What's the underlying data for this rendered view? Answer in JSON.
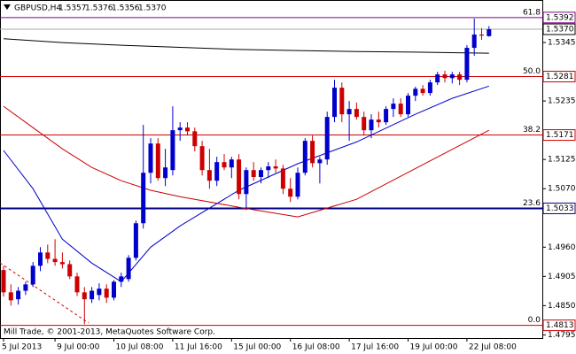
{
  "chart_data": {
    "type": "candlestick",
    "header": {
      "symbol": "GBPUSD,H4",
      "values": [
        1.5357,
        1.5376,
        1.5356,
        1.537
      ],
      "value_labels": [
        "1.5357",
        "1.5376",
        "1.5356",
        "1.5370"
      ]
    },
    "footer": "Mill Trade, © 2001-2013, MetaQuotes Software Corp.",
    "categories": [
      "5 Jul 2013",
      null,
      null,
      null,
      null,
      null,
      null,
      "9 Jul 00:00",
      null,
      null,
      null,
      null,
      null,
      null,
      null,
      "10 Jul 08:00",
      null,
      null,
      null,
      null,
      null,
      null,
      null,
      "11 Jul 16:00",
      null,
      null,
      null,
      null,
      null,
      null,
      null,
      "15 Jul 00:00",
      null,
      null,
      null,
      null,
      null,
      null,
      null,
      "16 Jul 08:00",
      null,
      null,
      null,
      null,
      null,
      null,
      null,
      "17 Jul 16:00",
      null,
      null,
      null,
      null,
      null,
      null,
      null,
      "19 Jul 00:00",
      null,
      null,
      null,
      null,
      null,
      null,
      null,
      "22 Jul 08:00",
      null,
      null,
      null
    ],
    "open": [
      1.4917,
      1.4875,
      1.4862,
      1.4878,
      1.489,
      1.4925,
      1.495,
      1.4938,
      1.4932,
      1.4928,
      1.4905,
      1.4875,
      1.4862,
      1.487,
      1.4882,
      1.4865,
      1.4895,
      1.49,
      1.494,
      1.5005,
      1.51,
      1.5155,
      1.509,
      1.5105,
      1.518,
      1.5185,
      1.5178,
      1.515,
      1.5105,
      1.5085,
      1.512,
      1.511,
      1.5125,
      1.506,
      1.5105,
      1.5092,
      1.5105,
      1.5112,
      1.5108,
      1.507,
      1.5055,
      1.51,
      1.516,
      1.5118,
      1.5125,
      1.5205,
      1.526,
      1.521,
      1.522,
      1.5205,
      1.518,
      1.52,
      1.5195,
      1.522,
      1.523,
      1.521,
      1.5245,
      1.5258,
      1.525,
      1.527,
      1.5285,
      1.5278,
      1.5285,
      1.5275,
      1.5335,
      1.536,
      1.5357
    ],
    "high": [
      1.4925,
      1.489,
      1.4885,
      1.4895,
      1.4932,
      1.496,
      1.4965,
      1.4975,
      1.495,
      1.4935,
      1.4912,
      1.4885,
      1.4885,
      1.4892,
      1.489,
      1.4898,
      1.4912,
      1.4945,
      1.501,
      1.519,
      1.5165,
      1.5165,
      1.5145,
      1.5225,
      1.5195,
      1.5195,
      1.5185,
      1.516,
      1.5145,
      1.513,
      1.5135,
      1.513,
      1.5135,
      1.511,
      1.512,
      1.511,
      1.512,
      1.5125,
      1.5115,
      1.509,
      1.511,
      1.5165,
      1.517,
      1.513,
      1.5215,
      1.5275,
      1.527,
      1.5235,
      1.5232,
      1.5215,
      1.521,
      1.5215,
      1.5225,
      1.524,
      1.524,
      1.525,
      1.5262,
      1.5265,
      1.5275,
      1.529,
      1.5292,
      1.529,
      1.529,
      1.534,
      1.539,
      1.5372,
      1.5376
    ],
    "low": [
      1.4867,
      1.485,
      1.4852,
      1.487,
      1.4885,
      1.4915,
      1.493,
      1.4925,
      1.492,
      1.49,
      1.4868,
      1.4815,
      1.4855,
      1.486,
      1.4855,
      1.486,
      1.4885,
      1.4895,
      1.4935,
      1.4995,
      1.508,
      1.5085,
      1.5075,
      1.5095,
      1.516,
      1.517,
      1.514,
      1.5095,
      1.507,
      1.5075,
      1.5105,
      1.509,
      1.505,
      1.503,
      1.5085,
      1.508,
      1.509,
      1.51,
      1.506,
      1.5045,
      1.505,
      1.5095,
      1.511,
      1.508,
      1.5115,
      1.5195,
      1.5195,
      1.516,
      1.52,
      1.517,
      1.5165,
      1.5185,
      1.519,
      1.5205,
      1.5205,
      1.5205,
      1.5235,
      1.5245,
      1.5245,
      1.5265,
      1.527,
      1.5268,
      1.5265,
      1.527,
      1.532,
      1.535,
      1.5356
    ],
    "close": [
      1.4875,
      1.486,
      1.4878,
      1.489,
      1.4925,
      1.495,
      1.4938,
      1.4932,
      1.4928,
      1.4905,
      1.4875,
      1.4862,
      1.4878,
      1.4882,
      1.4865,
      1.4895,
      1.4905,
      1.494,
      1.5005,
      1.51,
      1.5155,
      1.509,
      1.511,
      1.518,
      1.5185,
      1.5178,
      1.515,
      1.5105,
      1.5085,
      1.512,
      1.511,
      1.5125,
      1.506,
      1.5105,
      1.5092,
      1.5105,
      1.5112,
      1.5108,
      1.507,
      1.5055,
      1.51,
      1.516,
      1.5118,
      1.5125,
      1.5205,
      1.526,
      1.521,
      1.522,
      1.5205,
      1.518,
      1.52,
      1.5195,
      1.522,
      1.523,
      1.521,
      1.5245,
      1.5258,
      1.525,
      1.527,
      1.5285,
      1.5278,
      1.5285,
      1.5275,
      1.5335,
      1.536,
      1.5358,
      1.537
    ],
    "up_color": "#0000cc",
    "down_color": "#cc0000",
    "lines": [
      {
        "color": "#000000",
        "x": [
          0,
          8,
          16,
          24,
          32,
          40,
          48,
          56,
          66
        ],
        "values": [
          1.5352,
          1.5345,
          1.534,
          1.5336,
          1.5332,
          1.533,
          1.5328,
          1.5327,
          1.5325
        ]
      },
      {
        "color": "#0000cc",
        "x": [
          0,
          4,
          8,
          12,
          16,
          20,
          24,
          32,
          40,
          48,
          56,
          61,
          66
        ],
        "values": [
          1.5142,
          1.507,
          1.4975,
          1.493,
          1.4895,
          1.496,
          1.5,
          1.5067,
          1.5117,
          1.5158,
          1.521,
          1.524,
          1.5263
        ]
      },
      {
        "color": "#cc0000",
        "x": [
          0,
          4,
          8,
          12,
          16,
          20,
          24,
          32,
          40,
          48,
          56,
          66
        ],
        "values": [
          1.5225,
          1.5185,
          1.5145,
          1.511,
          1.5085,
          1.5067,
          1.5055,
          1.5035,
          1.5017,
          1.505,
          1.5108,
          1.518
        ]
      }
    ],
    "fib_levels": [
      {
        "label": "61.8",
        "value": 1.5392,
        "color": "#800080"
      },
      {
        "label": "50.0",
        "value": 1.5281,
        "color": "#cc0000"
      },
      {
        "label": "38.2",
        "value": 1.5171,
        "color": "#cc0000"
      },
      {
        "label": "23.6",
        "value": 1.5033,
        "color": "#000080"
      },
      {
        "label": "0.0",
        "value": 1.4813,
        "color": "#cc0000"
      }
    ],
    "ylim": [
      1.4789,
      1.5425
    ],
    "yticks": [
      1.5345,
      1.5235,
      1.5125,
      {
        "value": 1.507,
        "label": "1.5070"
      },
      {
        "value": 1.496,
        "label": "1.4960"
      },
      1.4905,
      {
        "value": 1.485,
        "label": "1.4850"
      },
      1.4795
    ]
  }
}
